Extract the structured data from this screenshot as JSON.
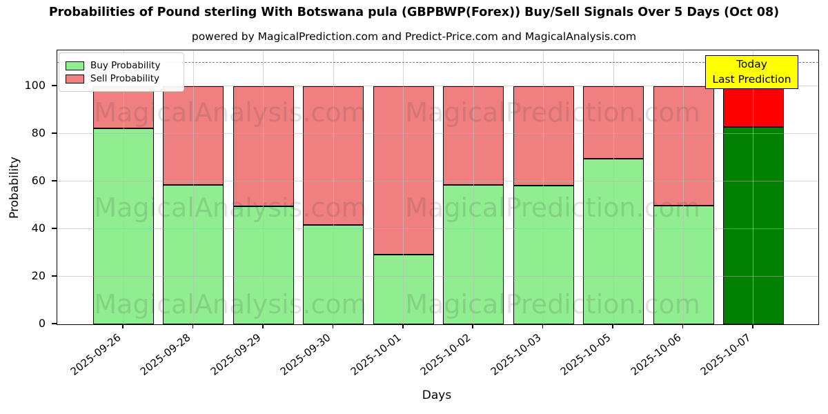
{
  "title": "Probabilities of Pound sterling With Botswana pula (GBPBWP(Forex)) Buy/Sell Signals Over 5 Days (Oct 08)",
  "subtitle": "powered by MagicalPrediction.com and Predict-Price.com and MagicalAnalysis.com",
  "watermarks": {
    "left_text": "MagicalAnalysis.com",
    "right_text": "MagicalPrediction.com"
  },
  "legend": [
    {
      "label": "Buy Probability",
      "color": "#90ee90"
    },
    {
      "label": "Sell Probability",
      "color": "#f08080"
    }
  ],
  "annotation": {
    "line1": "Today",
    "line2": "Last Prediction",
    "bg_color": "#ffff00"
  },
  "axes": {
    "ylabel": "Probability",
    "xlabel": "Days",
    "yticks": [
      0,
      20,
      40,
      60,
      80,
      100
    ],
    "ylim": [
      0,
      115
    ],
    "dashed_line_y": 110,
    "grid": true
  },
  "chart_data": {
    "type": "bar",
    "stacked": true,
    "title": "Probabilities of Pound sterling With Botswana pula (GBPBWP(Forex)) Buy/Sell Signals Over 5 Days (Oct 08)",
    "xlabel": "Days",
    "ylabel": "Probability",
    "ylim": [
      0,
      115
    ],
    "legend_position": "upper left",
    "categories": [
      "2025-09-26",
      "2025-09-28",
      "2025-09-29",
      "2025-09-30",
      "2025-10-01",
      "2025-10-02",
      "2025-10-03",
      "2025-10-05",
      "2025-10-06",
      "2025-10-07"
    ],
    "series": [
      {
        "name": "Buy Probability",
        "color": "#90ee90",
        "values": [
          82.4,
          58.6,
          49.5,
          41.6,
          29.2,
          58.4,
          58.2,
          69.4,
          49.9,
          82.8
        ]
      },
      {
        "name": "Sell Probability",
        "color": "#f08080",
        "values": [
          17.6,
          41.4,
          50.5,
          58.4,
          70.8,
          41.6,
          41.8,
          30.6,
          50.1,
          17.2
        ]
      }
    ],
    "today_bar": {
      "category": "2025-10-07",
      "buy_color": "#008000",
      "sell_color": "#ff0000"
    }
  }
}
